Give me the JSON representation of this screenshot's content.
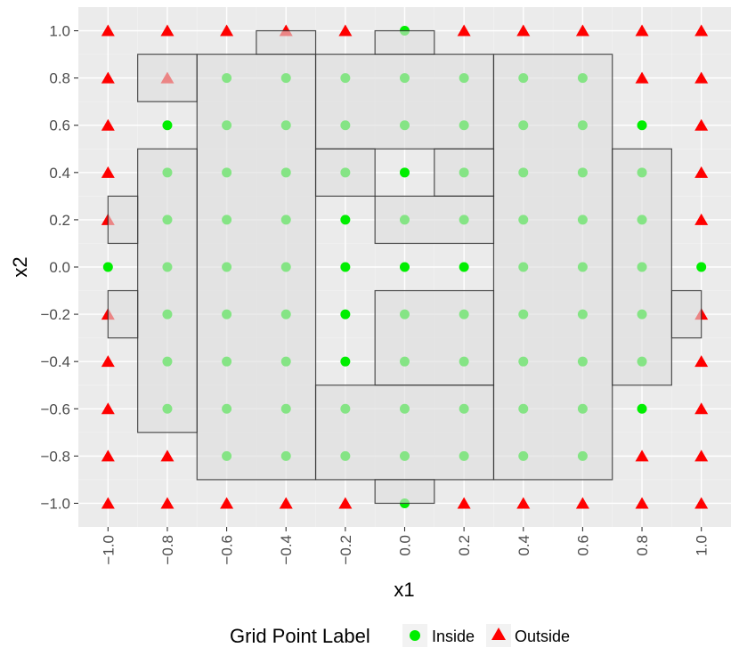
{
  "chart_data": {
    "type": "scatter",
    "xlabel": "x1",
    "ylabel": "x2",
    "xlim": [
      -1.1,
      1.1
    ],
    "ylim": [
      -1.1,
      1.1
    ],
    "x_ticks": [
      -1.0,
      -0.8,
      -0.6,
      -0.4,
      -0.2,
      0.0,
      0.2,
      0.4,
      0.6,
      0.8,
      1.0
    ],
    "y_ticks": [
      -1.0,
      -0.8,
      -0.6,
      -0.4,
      -0.2,
      0.0,
      0.2,
      0.4,
      0.6,
      0.8,
      1.0
    ],
    "x_tick_labels": [
      "−1.0",
      "−0.8",
      "−0.6",
      "−0.4",
      "−0.2",
      "0.0",
      "0.2",
      "0.4",
      "0.6",
      "0.8",
      "1.0"
    ],
    "y_tick_labels": [
      "−1.0",
      "−0.8",
      "−0.6",
      "−0.4",
      "−0.2",
      "0.0",
      "0.2",
      "0.4",
      "0.6",
      "0.8",
      "1.0"
    ],
    "grid": true,
    "legend": {
      "title": "Grid Point Label",
      "placement": "bottom",
      "entries": [
        {
          "label": "Inside",
          "shape": "circle",
          "color": "#00ee00"
        },
        {
          "label": "Outside",
          "shape": "triangle",
          "color": "#ff0000"
        }
      ]
    },
    "colors": {
      "panel_background": "#ebebeb",
      "grid_major": "#ffffff",
      "grid_minor": "#f2f2f2",
      "inside": "#00ee00",
      "outside": "#ff0000",
      "rect_fill": "#dddddd",
      "rect_stroke": "#333333"
    },
    "grid_points": {
      "x": [
        -1.0,
        -0.8,
        -0.6,
        -0.4,
        -0.2,
        0.0,
        0.2,
        0.4,
        0.6,
        0.8,
        1.0
      ],
      "y": [
        1.0,
        0.8,
        0.6,
        0.4,
        0.2,
        0.0,
        -0.2,
        -0.4,
        -0.6,
        -0.8,
        -1.0
      ],
      "labels_by_row": [
        "OOOOOIOOOOO",
        "OOIIIIIIIOO",
        "OIIIIIIIIIO",
        "OIIIIIIIIIO",
        "OIIIIIIIIIO",
        "IIIIIIIIIII",
        "OIIIIIIIIIO",
        "OIIIIIIIIIO",
        "OIIIIIIIIIO",
        "OOIIIIIIIOO",
        "OOOOOIOOOOO"
      ]
    },
    "rectangles": [
      {
        "x1": -0.1,
        "x2": 0.1,
        "y1": 0.9,
        "y2": 1.0
      },
      {
        "x1": -0.5,
        "x2": -0.3,
        "y1": 0.9,
        "y2": 1.0
      },
      {
        "x1": -0.9,
        "x2": -0.7,
        "y1": 0.7,
        "y2": 0.9
      },
      {
        "x1": -0.7,
        "x2": -0.3,
        "y1": -0.9,
        "y2": 0.9
      },
      {
        "x1": -0.3,
        "x2": 0.3,
        "y1": 0.5,
        "y2": 0.9
      },
      {
        "x1": 0.3,
        "x2": 0.7,
        "y1": -0.9,
        "y2": 0.9
      },
      {
        "x1": -0.9,
        "x2": -0.7,
        "y1": -0.7,
        "y2": 0.5
      },
      {
        "x1": -0.3,
        "x2": -0.1,
        "y1": 0.3,
        "y2": 0.5
      },
      {
        "x1": 0.1,
        "x2": 0.3,
        "y1": 0.3,
        "y2": 0.5
      },
      {
        "x1": -0.1,
        "x2": 0.3,
        "y1": 0.1,
        "y2": 0.3
      },
      {
        "x1": -1.0,
        "x2": -0.9,
        "y1": 0.1,
        "y2": 0.3
      },
      {
        "x1": -1.0,
        "x2": -0.9,
        "y1": -0.3,
        "y2": -0.1
      },
      {
        "x1": 0.9,
        "x2": 1.0,
        "y1": -0.3,
        "y2": -0.1
      },
      {
        "x1": 0.7,
        "x2": 0.9,
        "y1": -0.5,
        "y2": 0.5
      },
      {
        "x1": -0.1,
        "x2": 0.3,
        "y1": -0.5,
        "y2": -0.1
      },
      {
        "x1": -0.3,
        "x2": 0.3,
        "y1": -0.9,
        "y2": -0.5
      },
      {
        "x1": -0.1,
        "x2": 0.1,
        "y1": -1.0,
        "y2": -0.9
      }
    ]
  }
}
